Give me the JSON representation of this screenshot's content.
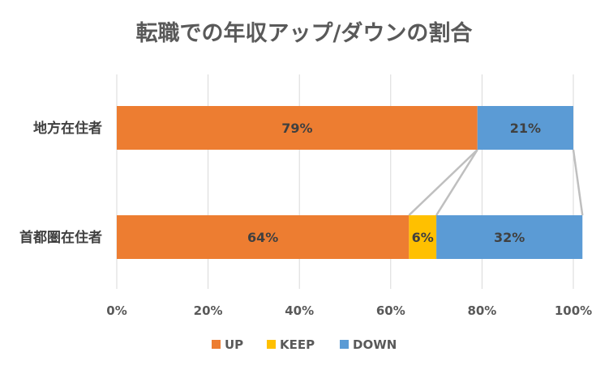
{
  "chart_data": {
    "type": "bar",
    "orientation": "horizontal",
    "stacked": "percent",
    "title": "転職での年収アップ/ダウンの割合",
    "categories": [
      "地方在住者",
      "首都圏在住者"
    ],
    "series": [
      {
        "name": "UP",
        "values": [
          79,
          64
        ],
        "labels": [
          "79%",
          "64%"
        ],
        "color": "#ED7D31"
      },
      {
        "name": "KEEP",
        "values": [
          0,
          6
        ],
        "labels": [
          "",
          "6%"
        ],
        "color": "#FFC000"
      },
      {
        "name": "DOWN",
        "values": [
          21,
          32
        ],
        "labels": [
          "21%",
          "32%"
        ],
        "color": "#5B9BD5"
      }
    ],
    "xlim": [
      0,
      100
    ],
    "xticks": [
      0,
      20,
      40,
      60,
      80,
      100
    ],
    "xtick_labels": [
      "0%",
      "20%",
      "40%",
      "60%",
      "80%",
      "100%"
    ],
    "gridlines": true,
    "series_lines": true,
    "legend": "bottom",
    "xlabel": "",
    "ylabel": ""
  },
  "colors": {
    "grid": "#D9D9D9",
    "series_line": "#BFBFBF"
  }
}
